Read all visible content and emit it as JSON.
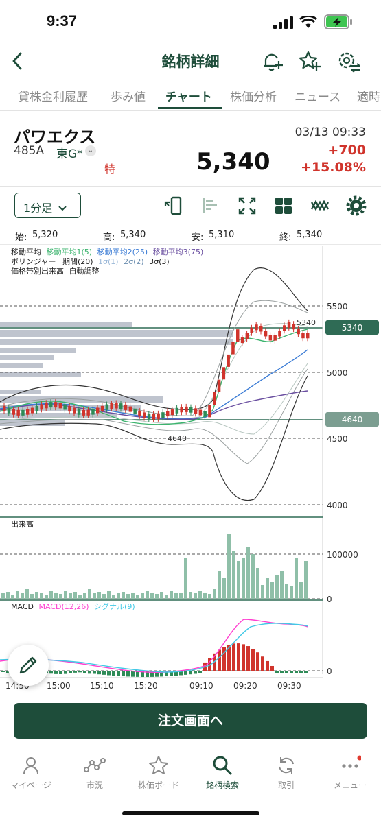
{
  "status": {
    "time": "9:37"
  },
  "header": {
    "title": "銘柄詳細"
  },
  "tabs": [
    {
      "label": "貸株金利履歴"
    },
    {
      "label": "歩み値"
    },
    {
      "label": "チャート"
    },
    {
      "label": "株価分析"
    },
    {
      "label": "ニュース"
    },
    {
      "label": "適時"
    }
  ],
  "stock": {
    "name": "パワエクス",
    "code": "485A",
    "market": "東G*",
    "special_mark": "特",
    "datetime": "03/13 09:33",
    "price": "5,340",
    "change": "+700",
    "change_pct": "+15.08%"
  },
  "toolbar": {
    "timeframe": "1分足"
  },
  "ohlc": {
    "open_label": "始:",
    "open": "5,320",
    "high_label": "高:",
    "high": "5,340",
    "low_label": "安:",
    "low": "5,310",
    "close_label": "終:",
    "close": "5,340"
  },
  "chart": {
    "legend_ma_title": "移動平均",
    "legend_ma1": "移動平均1(5)",
    "legend_ma2": "移動平均2(25)",
    "legend_ma3": "移動平均3(75)",
    "legend_bb_title": "ボリンジャー",
    "legend_bb_period": "期間(20)",
    "legend_bb_1": "1σ(1)",
    "legend_bb_2": "2σ(2)",
    "legend_bb_3": "3σ(3)",
    "legend_vp_title": "価格帯別出来高",
    "legend_vp_mode": "自動調整",
    "price_ticks": [
      "5500",
      "5000",
      "4500",
      "4000"
    ],
    "current_price_tag": "5340",
    "current_price_label": "5340",
    "low_tag": "4640",
    "low_label": "4640",
    "volume_title": "出来高",
    "volume_ticks": [
      "100000",
      "0"
    ],
    "macd_title": "MACD",
    "macd_line_label": "MACD(12,26)",
    "signal_label": "シグナル(9)",
    "macd_tick": "0",
    "time_labels": [
      "14:50",
      "15:00",
      "15:10",
      "15:20",
      "09:10",
      "09:20",
      "09:30"
    ],
    "colors": {
      "up": "#d0342c",
      "down": "#2e8b57",
      "ma1": "#3cb46e",
      "ma2": "#3a7bd5",
      "ma3": "#6a4fa0",
      "macd": "#ff3fd0",
      "signal": "#42c9e6",
      "volume": "#8fbfa8"
    }
  },
  "order_button": {
    "label": "注文画面へ"
  },
  "bottom_nav": [
    {
      "label": "マイページ",
      "icon": "person-icon"
    },
    {
      "label": "市況",
      "icon": "market-graph-icon"
    },
    {
      "label": "株価ボード",
      "icon": "star-icon"
    },
    {
      "label": "銘柄検索",
      "icon": "search-icon"
    },
    {
      "label": "取引",
      "icon": "refresh-icon"
    },
    {
      "label": "メニュー",
      "icon": "more-icon"
    }
  ]
}
